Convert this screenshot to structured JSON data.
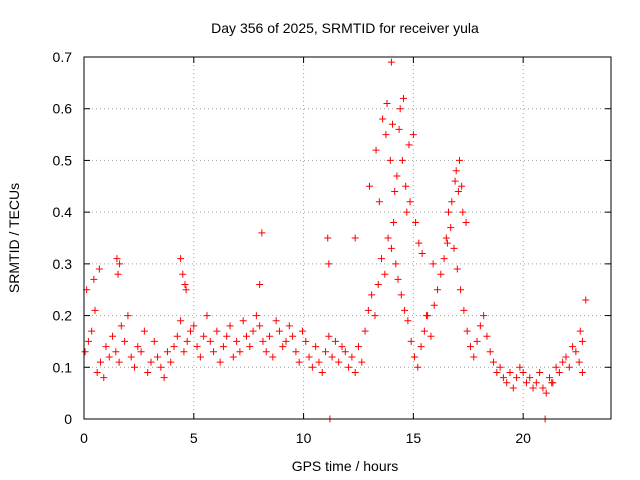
{
  "chart_data": {
    "type": "scatter",
    "title": "Day 356 of 2025, SRMTID for receiver yula",
    "xlabel": "GPS time / hours",
    "ylabel": "SRMTID / TECUs",
    "xlim": [
      0,
      24
    ],
    "ylim": [
      0,
      0.7
    ],
    "xticks": [
      0,
      5,
      10,
      15,
      20
    ],
    "yticks": [
      0,
      0.1,
      0.2,
      0.3,
      0.4,
      0.5,
      0.6,
      0.7
    ],
    "xtick_labels": [
      "0",
      "5",
      "10",
      "15",
      "20"
    ],
    "ytick_labels": [
      "0",
      "0.1",
      "0.2",
      "0.3",
      "0.4",
      "0.5",
      "0.6",
      "0.7"
    ],
    "grid": true,
    "marker": "+",
    "color": "#ff0000",
    "series": [
      {
        "name": "yula",
        "x": [
          0.05,
          0.2,
          0.35,
          0.5,
          0.6,
          0.75,
          0.9,
          1.0,
          1.15,
          1.3,
          1.45,
          1.6,
          1.7,
          1.85,
          2.0,
          2.15,
          2.3,
          2.45,
          2.6,
          2.75,
          2.9,
          3.05,
          3.2,
          3.35,
          3.5,
          3.65,
          3.8,
          3.95,
          4.1,
          4.25,
          4.4,
          4.55,
          4.7,
          4.85,
          5.0,
          5.15,
          5.3,
          5.45,
          5.6,
          5.75,
          5.9,
          6.05,
          6.2,
          6.35,
          6.5,
          6.65,
          6.8,
          6.95,
          7.1,
          7.25,
          7.4,
          7.55,
          7.7,
          7.85,
          8.0,
          8.15,
          8.3,
          8.45,
          8.6,
          8.75,
          8.9,
          9.05,
          9.2,
          9.35,
          9.5,
          9.65,
          9.8,
          9.95,
          10.1,
          10.25,
          10.4,
          10.55,
          10.7,
          10.85,
          11.0,
          11.15,
          11.3,
          11.45,
          11.6,
          11.75,
          11.9,
          12.05,
          12.2,
          12.35,
          12.5,
          12.65,
          12.8,
          12.95,
          13.1,
          13.25,
          13.4,
          13.55,
          13.7,
          13.85,
          14.0,
          14.1,
          14.2,
          14.3,
          14.45,
          14.6,
          14.75,
          14.9,
          15.05,
          15.2,
          15.35,
          15.5,
          15.65,
          15.8,
          15.95,
          16.1,
          16.25,
          16.4,
          16.55,
          16.7,
          16.85,
          17.0,
          17.15,
          17.3,
          17.45,
          17.6,
          17.75,
          17.9,
          18.05,
          18.2,
          18.35,
          18.5,
          18.65,
          18.8,
          18.95,
          19.1,
          19.25,
          19.4,
          19.55,
          19.7,
          19.85,
          20.0,
          20.15,
          20.3,
          20.45,
          20.6,
          20.75,
          20.9,
          21.05,
          21.2,
          21.35,
          21.5,
          21.65,
          21.8,
          21.95,
          22.1,
          22.25,
          22.4,
          22.55,
          22.7,
          22.85,
          0.12,
          0.45,
          0.7,
          1.5,
          1.55,
          1.62,
          4.4,
          4.5,
          4.6,
          4.65,
          8.0,
          8.1,
          11.1,
          11.15,
          11.2,
          12.35,
          13.0,
          13.3,
          13.45,
          13.6,
          13.75,
          13.8,
          13.95,
          14.0,
          14.05,
          14.15,
          14.25,
          14.35,
          14.4,
          14.5,
          14.55,
          14.65,
          14.7,
          14.8,
          14.85,
          15.0,
          15.1,
          15.25,
          15.4,
          15.6,
          15.9,
          16.5,
          16.6,
          16.75,
          16.9,
          16.95,
          17.05,
          17.1,
          17.2,
          17.25,
          17.4,
          21.0,
          21.3,
          22.6,
          22.7
        ],
        "y": [
          0.13,
          0.15,
          0.17,
          0.21,
          0.09,
          0.11,
          0.08,
          0.14,
          0.12,
          0.16,
          0.13,
          0.11,
          0.18,
          0.15,
          0.2,
          0.12,
          0.1,
          0.14,
          0.13,
          0.17,
          0.09,
          0.11,
          0.15,
          0.12,
          0.1,
          0.08,
          0.13,
          0.11,
          0.14,
          0.16,
          0.19,
          0.13,
          0.15,
          0.17,
          0.18,
          0.14,
          0.12,
          0.16,
          0.2,
          0.15,
          0.13,
          0.17,
          0.11,
          0.14,
          0.16,
          0.18,
          0.12,
          0.15,
          0.13,
          0.19,
          0.16,
          0.14,
          0.17,
          0.2,
          0.18,
          0.15,
          0.13,
          0.16,
          0.12,
          0.19,
          0.17,
          0.14,
          0.15,
          0.18,
          0.16,
          0.13,
          0.11,
          0.17,
          0.15,
          0.12,
          0.1,
          0.14,
          0.11,
          0.09,
          0.13,
          0.16,
          0.12,
          0.15,
          0.11,
          0.14,
          0.13,
          0.1,
          0.12,
          0.09,
          0.14,
          0.11,
          0.17,
          0.21,
          0.24,
          0.2,
          0.26,
          0.31,
          0.28,
          0.35,
          0.33,
          0.38,
          0.3,
          0.27,
          0.24,
          0.21,
          0.19,
          0.15,
          0.12,
          0.1,
          0.14,
          0.17,
          0.2,
          0.16,
          0.22,
          0.25,
          0.28,
          0.31,
          0.34,
          0.37,
          0.33,
          0.29,
          0.25,
          0.21,
          0.17,
          0.14,
          0.12,
          0.15,
          0.18,
          0.2,
          0.16,
          0.13,
          0.11,
          0.09,
          0.1,
          0.08,
          0.07,
          0.09,
          0.06,
          0.08,
          0.1,
          0.09,
          0.07,
          0.08,
          0.06,
          0.07,
          0.09,
          0.06,
          0.05,
          0.08,
          0.07,
          0.1,
          0.09,
          0.11,
          0.12,
          0.1,
          0.14,
          0.13,
          0.11,
          0.09,
          0.23,
          0.25,
          0.27,
          0.29,
          0.31,
          0.28,
          0.3,
          0.31,
          0.28,
          0.26,
          0.25,
          0.26,
          0.36,
          0.35,
          0.3,
          0.0,
          0.35,
          0.45,
          0.52,
          0.42,
          0.58,
          0.55,
          0.61,
          0.5,
          0.69,
          0.57,
          0.44,
          0.47,
          0.56,
          0.6,
          0.5,
          0.62,
          0.45,
          0.4,
          0.53,
          0.42,
          0.55,
          0.38,
          0.34,
          0.32,
          0.2,
          0.3,
          0.35,
          0.4,
          0.42,
          0.46,
          0.48,
          0.44,
          0.5,
          0.45,
          0.4,
          0.38,
          0.0,
          0.07,
          0.17,
          0.15
        ]
      }
    ]
  }
}
